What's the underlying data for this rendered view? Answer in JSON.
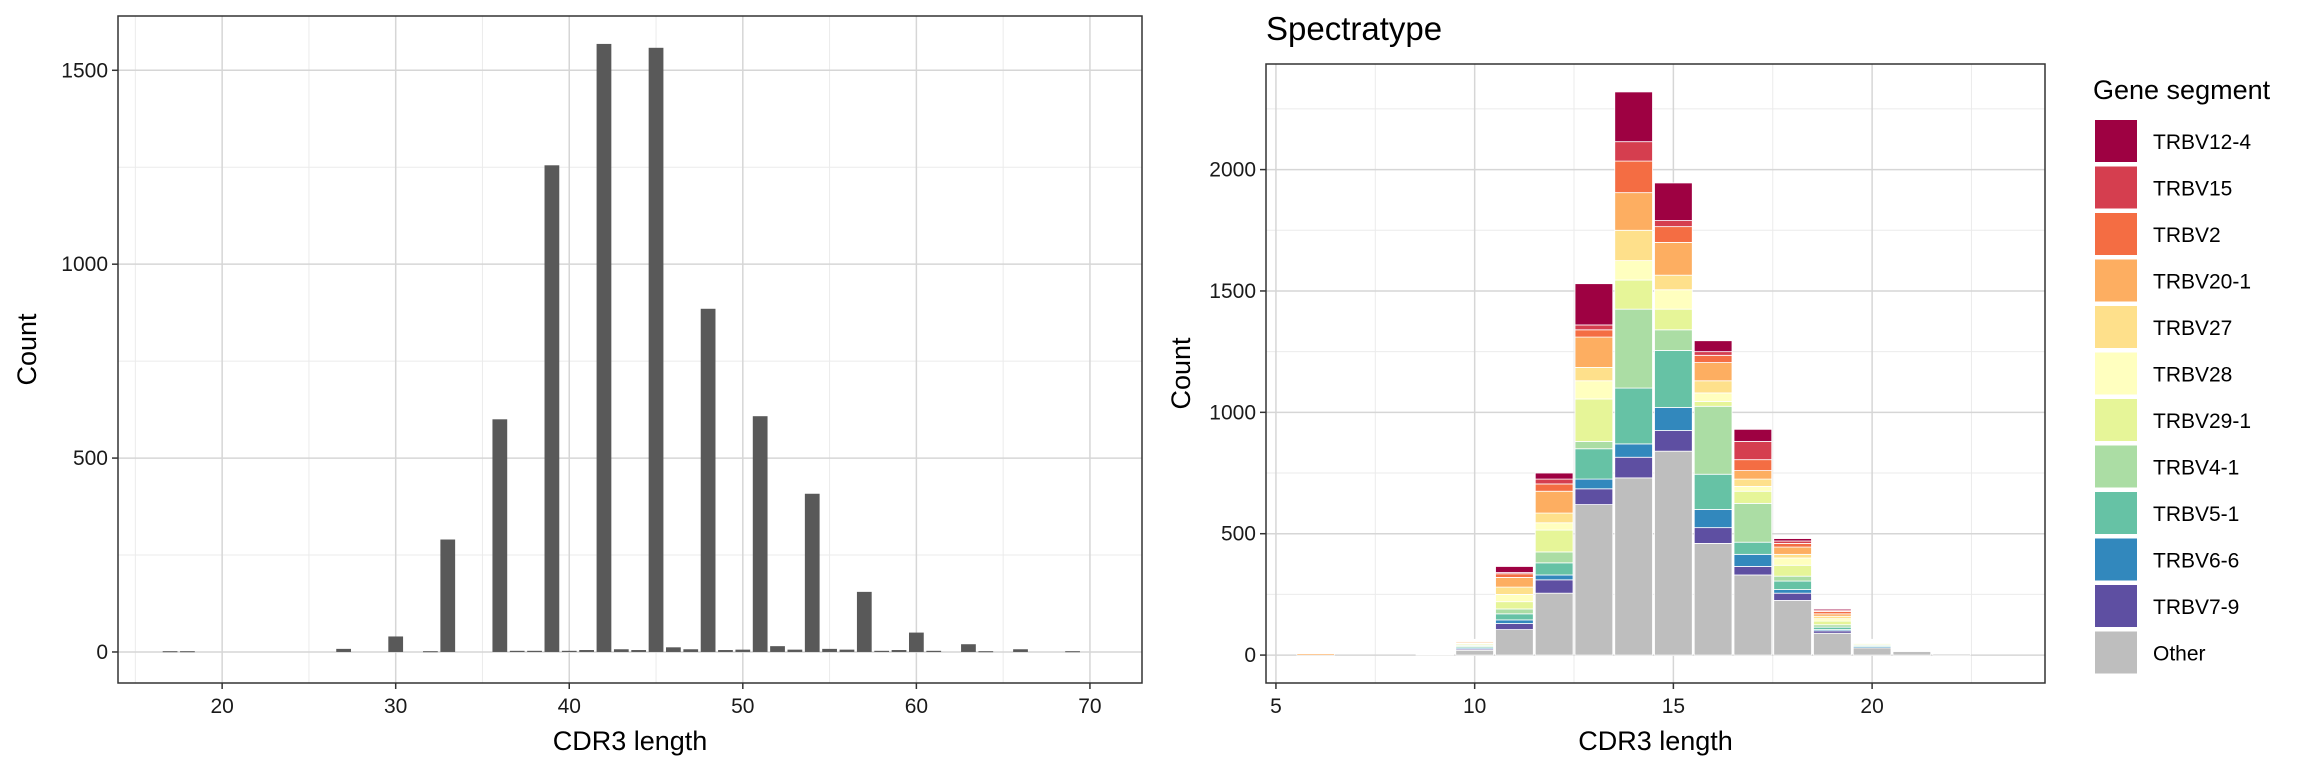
{
  "chart_data": [
    {
      "type": "bar",
      "title": "",
      "xlabel": "CDR3 length",
      "ylabel": "Count",
      "xlim": [
        14,
        73
      ],
      "ylim": [
        -80,
        1640
      ],
      "x_ticks": [
        20,
        30,
        40,
        50,
        60,
        70
      ],
      "y_ticks": [
        0,
        500,
        1000,
        1500
      ],
      "bar_color": "#595959",
      "grid": true,
      "x": [
        17,
        18,
        27,
        30,
        32,
        33,
        36,
        37,
        38,
        39,
        40,
        41,
        42,
        43,
        44,
        45,
        46,
        47,
        48,
        49,
        50,
        51,
        52,
        53,
        54,
        55,
        56,
        57,
        58,
        59,
        60,
        61,
        63,
        64,
        66,
        69
      ],
      "values": [
        2,
        2,
        8,
        40,
        2,
        290,
        600,
        3,
        3,
        1255,
        3,
        5,
        1568,
        7,
        5,
        1558,
        12,
        7,
        885,
        5,
        6,
        608,
        15,
        6,
        408,
        8,
        6,
        155,
        3,
        5,
        50,
        3,
        20,
        2,
        7,
        2
      ]
    },
    {
      "type": "bar",
      "stacked": true,
      "title": "Spectratype",
      "xlabel": "CDR3 length",
      "ylabel": "Count",
      "xlim": [
        4.75,
        24.35
      ],
      "ylim": [
        -115,
        2435
      ],
      "x_ticks": [
        5,
        10,
        15,
        20
      ],
      "y_ticks": [
        0,
        500,
        1000,
        1500,
        2000
      ],
      "legend_title": "Gene segment",
      "legend_position": "right",
      "grid": true,
      "categories": [
        6,
        7,
        8,
        9,
        10,
        11,
        12,
        13,
        14,
        15,
        16,
        17,
        18,
        19,
        20,
        21,
        22
      ],
      "series": [
        {
          "name": "Other",
          "color": "#BEBEBE",
          "values": [
            0,
            0,
            0,
            0,
            20,
            105,
            255,
            620,
            730,
            840,
            460,
            330,
            225,
            90,
            30,
            15,
            5
          ]
        },
        {
          "name": "TRBV7-9",
          "color": "#5E4FA2",
          "values": [
            0,
            0,
            0,
            0,
            5,
            25,
            55,
            65,
            85,
            85,
            65,
            35,
            30,
            10,
            0,
            0,
            0
          ]
        },
        {
          "name": "TRBV6-6",
          "color": "#3288BD",
          "values": [
            0,
            0,
            0,
            0,
            5,
            15,
            20,
            40,
            55,
            95,
            75,
            50,
            15,
            5,
            5,
            3,
            0
          ]
        },
        {
          "name": "TRBV5-1",
          "color": "#66C2A5",
          "values": [
            0,
            0,
            0,
            0,
            5,
            25,
            50,
            125,
            230,
            235,
            145,
            50,
            35,
            10,
            5,
            3,
            0
          ]
        },
        {
          "name": "TRBV4-1",
          "color": "#ABDDA4",
          "values": [
            0,
            0,
            0,
            0,
            5,
            20,
            45,
            30,
            325,
            85,
            280,
            160,
            20,
            10,
            3,
            0,
            0
          ]
        },
        {
          "name": "TRBV29-1",
          "color": "#E6F598",
          "values": [
            0,
            0,
            0,
            0,
            5,
            30,
            90,
            175,
            120,
            85,
            20,
            50,
            45,
            15,
            5,
            3,
            0
          ]
        },
        {
          "name": "TRBV28",
          "color": "#FFFFBF",
          "values": [
            0,
            0,
            0,
            0,
            3,
            30,
            30,
            75,
            80,
            80,
            35,
            20,
            30,
            10,
            3,
            0,
            0
          ]
        },
        {
          "name": "TRBV27",
          "color": "#FEE08B",
          "values": [
            0,
            0,
            0,
            0,
            3,
            30,
            40,
            55,
            125,
            60,
            50,
            30,
            15,
            10,
            3,
            0,
            0
          ]
        },
        {
          "name": "TRBV20-1",
          "color": "#FDAE61",
          "values": [
            6,
            0,
            0,
            3,
            5,
            40,
            90,
            125,
            155,
            135,
            75,
            35,
            30,
            10,
            3,
            0,
            0
          ]
        },
        {
          "name": "TRBV2",
          "color": "#F46D43",
          "values": [
            0,
            0,
            0,
            0,
            3,
            15,
            30,
            30,
            130,
            65,
            30,
            45,
            15,
            10,
            3,
            0,
            0
          ]
        },
        {
          "name": "TRBV15",
          "color": "#D53E4F",
          "values": [
            0,
            0,
            0,
            0,
            3,
            5,
            20,
            20,
            80,
            25,
            15,
            75,
            10,
            5,
            3,
            0,
            0
          ]
        },
        {
          "name": "TRBV12-4",
          "color": "#9E0142",
          "values": [
            0,
            0,
            0,
            0,
            3,
            25,
            25,
            170,
            205,
            155,
            45,
            50,
            10,
            5,
            2,
            0,
            0
          ]
        }
      ]
    }
  ]
}
